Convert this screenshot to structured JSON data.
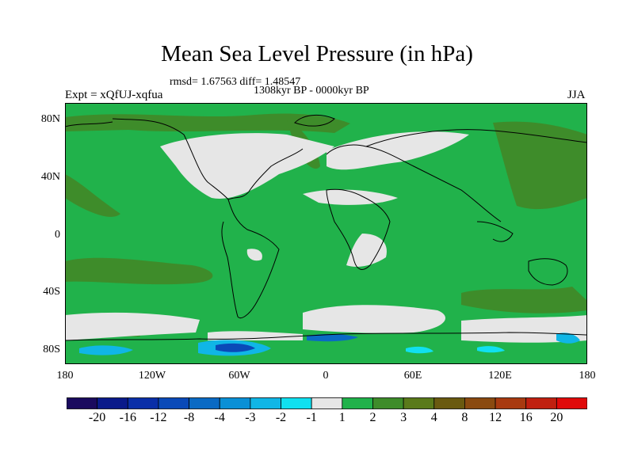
{
  "title": "Mean Sea Level Pressure (in hPa)",
  "stats": {
    "rmsd_text": "rmsd= 1.67563 diff= 1.48547"
  },
  "period": "1308kyr BP - 0000kyr BP",
  "experiment": "Expt = xQfUJ-xqfua",
  "season": "JJA",
  "map": {
    "lat_labels": [
      "80N",
      "40N",
      "0",
      "40S",
      "80S"
    ],
    "lon_labels": [
      "180",
      "120W",
      "60W",
      "0",
      "60E",
      "120E",
      "180"
    ],
    "background_color": "#21b24b",
    "coastline_color": "#000000"
  },
  "colorbar": {
    "labels": [
      "-20",
      "-16",
      "-12",
      "-8",
      "-4",
      "-3",
      "-2",
      "-1",
      "1",
      "2",
      "3",
      "4",
      "8",
      "12",
      "16",
      "20"
    ],
    "colors": [
      "#1a0a5e",
      "#0a1a8a",
      "#0a2fa8",
      "#0a4ab8",
      "#0a6ac4",
      "#0a90d6",
      "#10b6e6",
      "#10e0f0",
      "#e6e6e6",
      "#21b24b",
      "#3e8c2a",
      "#5a7a1a",
      "#6a5a10",
      "#8a4a10",
      "#a83a10",
      "#c02010",
      "#e00a0a"
    ]
  }
}
